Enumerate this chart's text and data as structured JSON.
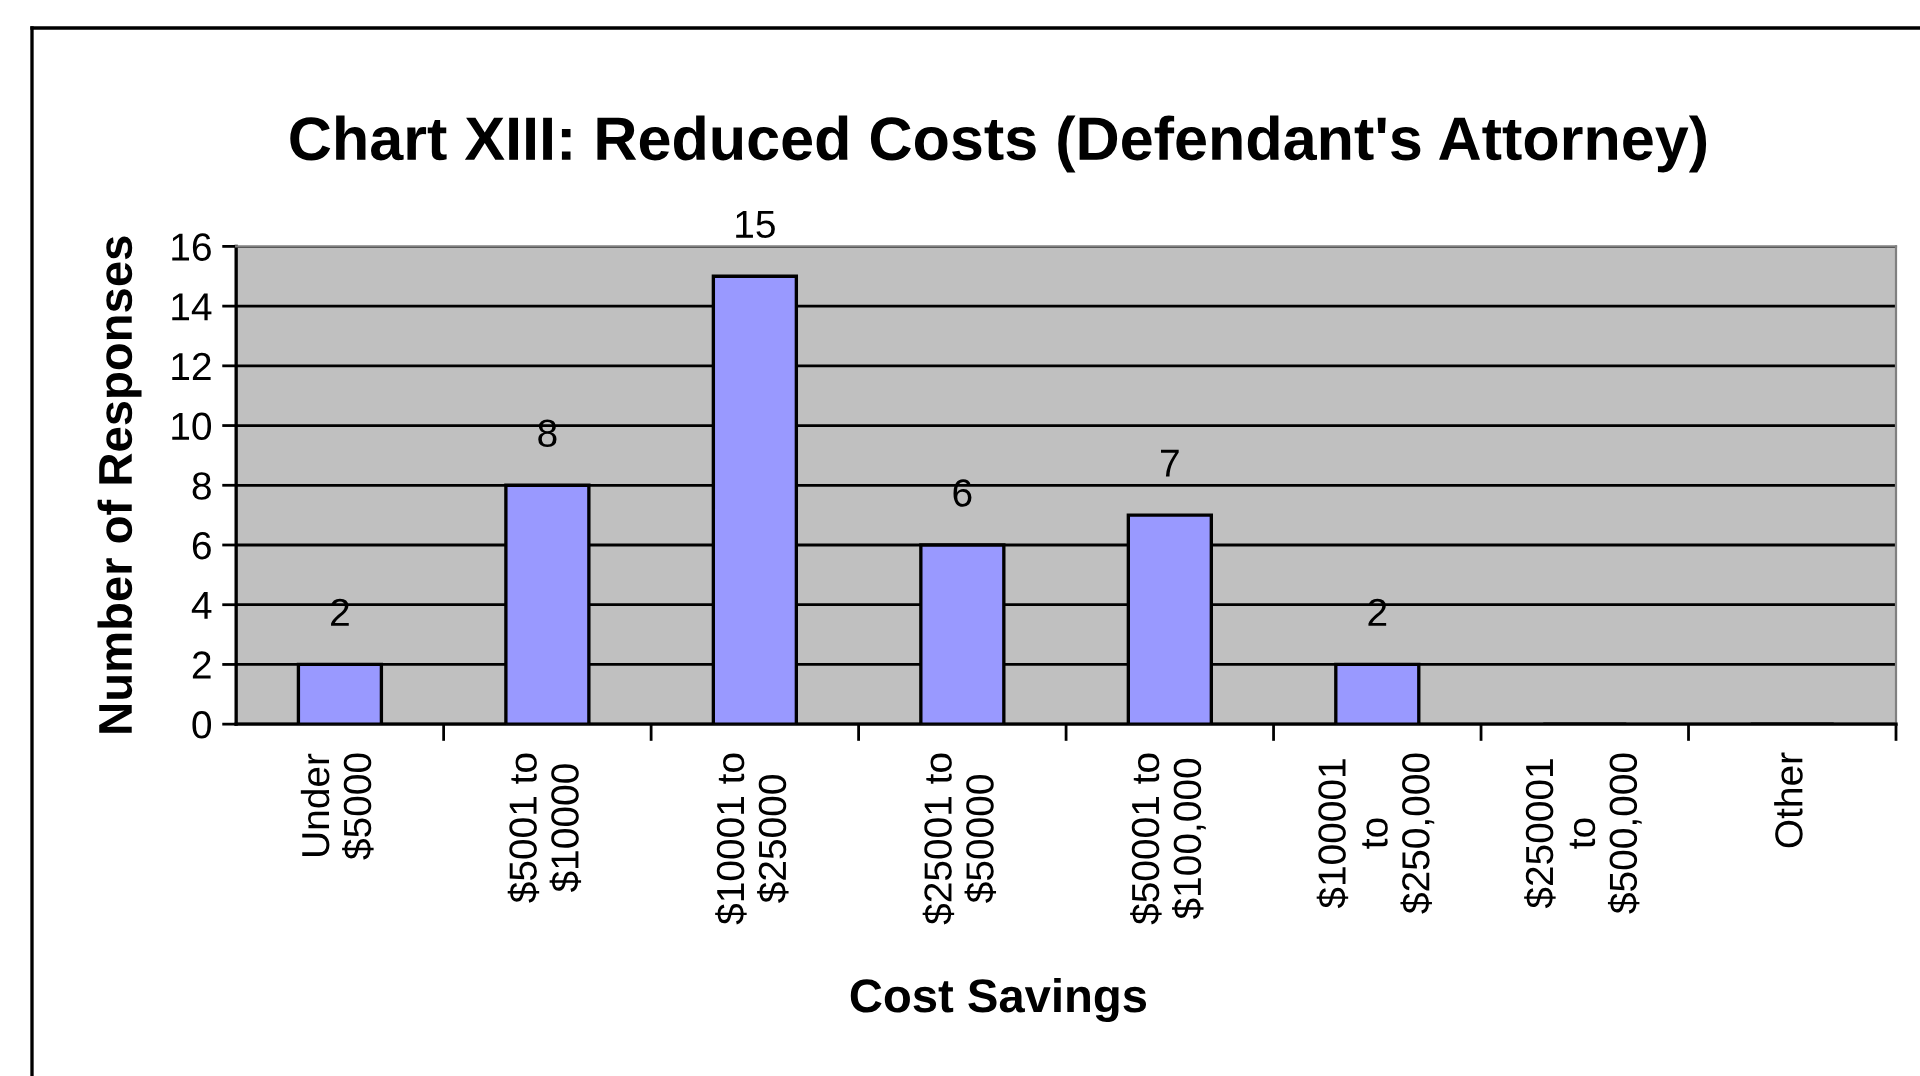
{
  "chart_data": {
    "type": "bar",
    "title": "Chart XIII: Reduced Costs (Defendant's Attorney)",
    "xlabel": "Cost Savings",
    "ylabel": "Number of Responses",
    "categories": [
      "Under\n$5000",
      "$5001 to\n$10000",
      "$10001 to\n$25000",
      "$25001 to\n$50000",
      "$50001 to\n$100,000",
      "$100001\nto\n$250,000",
      "$250001\nto\n$500,000",
      "Other"
    ],
    "values": [
      2,
      8,
      15,
      6,
      7,
      2,
      0,
      0
    ],
    "value_labels": [
      "2",
      "8",
      "15",
      "6",
      "7",
      "2",
      null,
      null
    ],
    "color": "#9999ff",
    "ylim": [
      0,
      16
    ],
    "yticks": [
      0,
      2,
      4,
      6,
      8,
      10,
      12,
      14,
      16
    ],
    "grid": "y",
    "legend": false
  }
}
